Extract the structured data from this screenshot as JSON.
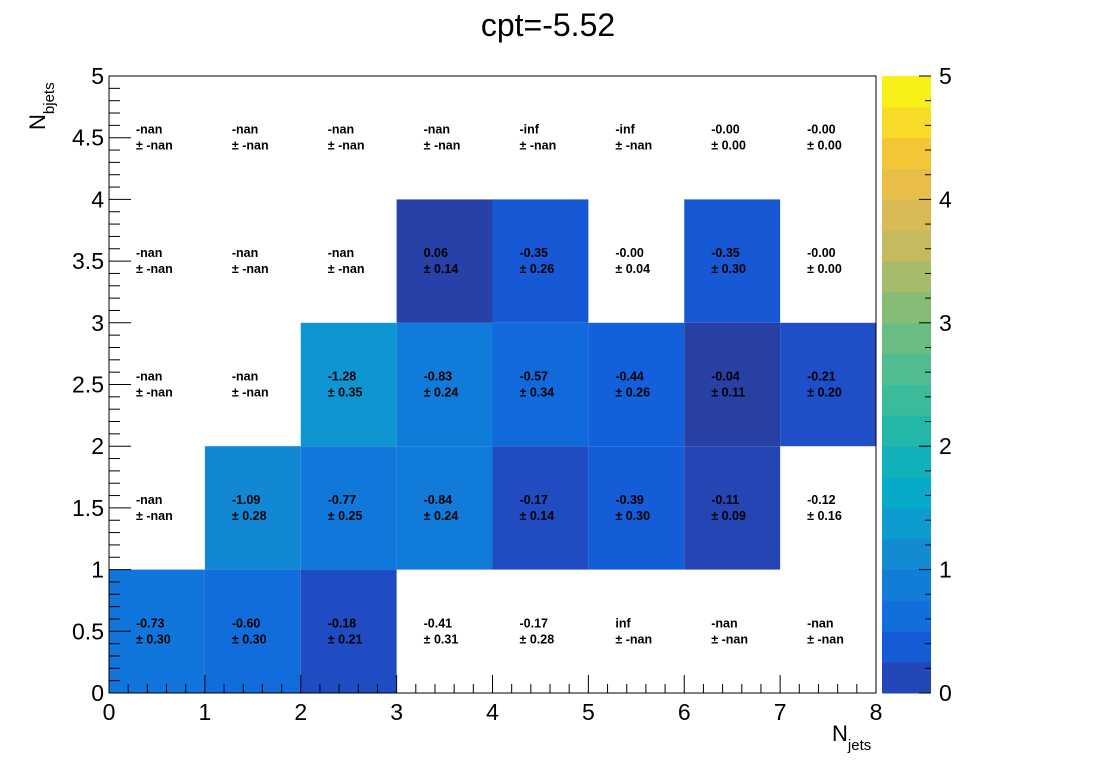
{
  "chart_data": {
    "type": "heatmap",
    "title": "cpt=-5.52",
    "xlabel": "N",
    "xlabel_sub": "jets",
    "ylabel": "N",
    "ylabel_sub": "bjets",
    "xlim": [
      0,
      8
    ],
    "ylim": [
      0,
      5
    ],
    "x_ticks": [
      "0",
      "1",
      "2",
      "3",
      "4",
      "5",
      "6",
      "7",
      "8"
    ],
    "y_ticks": [
      "0",
      "0.5",
      "1",
      "1.5",
      "2",
      "2.5",
      "3",
      "3.5",
      "4",
      "4.5",
      "5"
    ],
    "colorbar": {
      "range": [
        0,
        5
      ],
      "ticks": [
        "0",
        "1",
        "2",
        "3",
        "4",
        "5"
      ]
    },
    "cells": [
      {
        "x": 0,
        "y": 0,
        "z": 0.73,
        "value": "-0.73",
        "error": "± 0.30"
      },
      {
        "x": 1,
        "y": 0,
        "z": 0.6,
        "value": "-0.60",
        "error": "± 0.30"
      },
      {
        "x": 2,
        "y": 0,
        "z": 0.18,
        "value": "-0.18",
        "error": "± 0.21"
      },
      {
        "x": 3,
        "y": 0,
        "z": null,
        "value": "-0.41",
        "error": "± 0.31"
      },
      {
        "x": 4,
        "y": 0,
        "z": null,
        "value": "-0.17",
        "error": "± 0.28"
      },
      {
        "x": 5,
        "y": 0,
        "z": null,
        "value": "inf",
        "error": "± -nan"
      },
      {
        "x": 6,
        "y": 0,
        "z": null,
        "value": "-nan",
        "error": "± -nan"
      },
      {
        "x": 7,
        "y": 0,
        "z": null,
        "value": "-nan",
        "error": "± -nan"
      },
      {
        "x": 0,
        "y": 1,
        "z": null,
        "value": "-nan",
        "error": "± -nan"
      },
      {
        "x": 1,
        "y": 1,
        "z": 1.09,
        "value": "-1.09",
        "error": "± 0.28"
      },
      {
        "x": 2,
        "y": 1,
        "z": 0.77,
        "value": "-0.77",
        "error": "± 0.25"
      },
      {
        "x": 3,
        "y": 1,
        "z": 0.84,
        "value": "-0.84",
        "error": "± 0.24"
      },
      {
        "x": 4,
        "y": 1,
        "z": 0.17,
        "value": "-0.17",
        "error": "± 0.14"
      },
      {
        "x": 5,
        "y": 1,
        "z": 0.39,
        "value": "-0.39",
        "error": "± 0.30"
      },
      {
        "x": 6,
        "y": 1,
        "z": 0.11,
        "value": "-0.11",
        "error": "± 0.09"
      },
      {
        "x": 7,
        "y": 1,
        "z": null,
        "value": "-0.12",
        "error": "± 0.16"
      },
      {
        "x": 0,
        "y": 2,
        "z": null,
        "value": "-nan",
        "error": "± -nan"
      },
      {
        "x": 1,
        "y": 2,
        "z": null,
        "value": "-nan",
        "error": "± -nan"
      },
      {
        "x": 2,
        "y": 2,
        "z": 1.28,
        "value": "-1.28",
        "error": "± 0.35"
      },
      {
        "x": 3,
        "y": 2,
        "z": 0.83,
        "value": "-0.83",
        "error": "± 0.24"
      },
      {
        "x": 4,
        "y": 2,
        "z": 0.57,
        "value": "-0.57",
        "error": "± 0.34"
      },
      {
        "x": 5,
        "y": 2,
        "z": 0.44,
        "value": "-0.44",
        "error": "± 0.26"
      },
      {
        "x": 6,
        "y": 2,
        "z": 0.04,
        "value": "-0.04",
        "error": "± 0.11"
      },
      {
        "x": 7,
        "y": 2,
        "z": 0.21,
        "value": "-0.21",
        "error": "± 0.20"
      },
      {
        "x": 0,
        "y": 3,
        "z": null,
        "value": "-nan",
        "error": "± -nan"
      },
      {
        "x": 1,
        "y": 3,
        "z": null,
        "value": "-nan",
        "error": "± -nan"
      },
      {
        "x": 2,
        "y": 3,
        "z": null,
        "value": "-nan",
        "error": "± -nan"
      },
      {
        "x": 3,
        "y": 3,
        "z": 0.06,
        "value": "0.06",
        "error": "± 0.14"
      },
      {
        "x": 4,
        "y": 3,
        "z": 0.35,
        "value": "-0.35",
        "error": "± 0.26"
      },
      {
        "x": 5,
        "y": 3,
        "z": null,
        "value": "-0.00",
        "error": "± 0.04"
      },
      {
        "x": 6,
        "y": 3,
        "z": 0.35,
        "value": "-0.35",
        "error": "± 0.30"
      },
      {
        "x": 7,
        "y": 3,
        "z": null,
        "value": "-0.00",
        "error": "± 0.00"
      },
      {
        "x": 0,
        "y": 4,
        "z": null,
        "value": "-nan",
        "error": "± -nan"
      },
      {
        "x": 1,
        "y": 4,
        "z": null,
        "value": "-nan",
        "error": "± -nan"
      },
      {
        "x": 2,
        "y": 4,
        "z": null,
        "value": "-nan",
        "error": "± -nan"
      },
      {
        "x": 3,
        "y": 4,
        "z": null,
        "value": "-nan",
        "error": "± -nan"
      },
      {
        "x": 4,
        "y": 4,
        "z": null,
        "value": "-inf",
        "error": "± -nan"
      },
      {
        "x": 5,
        "y": 4,
        "z": null,
        "value": "-inf",
        "error": "± -nan"
      },
      {
        "x": 6,
        "y": 4,
        "z": null,
        "value": "-0.00",
        "error": "± 0.00"
      },
      {
        "x": 7,
        "y": 4,
        "z": null,
        "value": "-0.00",
        "error": "± 0.00"
      }
    ]
  }
}
